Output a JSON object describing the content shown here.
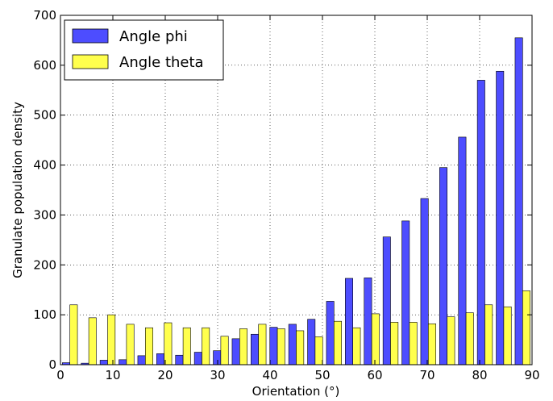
{
  "chart_data": {
    "type": "bar",
    "xlabel": "Orientation (°)",
    "ylabel": "Granulate population density",
    "xlim": [
      0,
      90
    ],
    "ylim": [
      0,
      700
    ],
    "xticks": [
      "0",
      "10",
      "20",
      "30",
      "40",
      "50",
      "60",
      "70",
      "80",
      "90"
    ],
    "yticks": [
      "0",
      "100",
      "200",
      "300",
      "400",
      "500",
      "600",
      "700"
    ],
    "grid": true,
    "legend_position": "top-left",
    "bin_edges": [
      0,
      3.6,
      7.2,
      10.8,
      14.4,
      18,
      21.6,
      25.2,
      28.8,
      32.4,
      36,
      39.6,
      43.2,
      46.8,
      50.4,
      54,
      57.6,
      61.2,
      64.8,
      68.4,
      72,
      75.6,
      79.2,
      82.8,
      86.4,
      90
    ],
    "series": [
      {
        "name": "Angle phi",
        "color": "#4d4dff",
        "values": [
          4,
          3,
          9,
          10,
          18,
          22,
          19,
          25,
          28,
          52,
          61,
          75,
          81,
          91,
          127,
          173,
          174,
          256,
          288,
          333,
          395,
          456,
          570,
          588,
          655
        ]
      },
      {
        "name": "Angle theta",
        "color": "#ffff4d",
        "values": [
          120,
          94,
          100,
          81,
          74,
          84,
          74,
          74,
          57,
          72,
          81,
          72,
          68,
          56,
          87,
          74,
          102,
          85,
          85,
          82,
          96,
          104,
          120,
          116,
          148
        ]
      }
    ]
  }
}
